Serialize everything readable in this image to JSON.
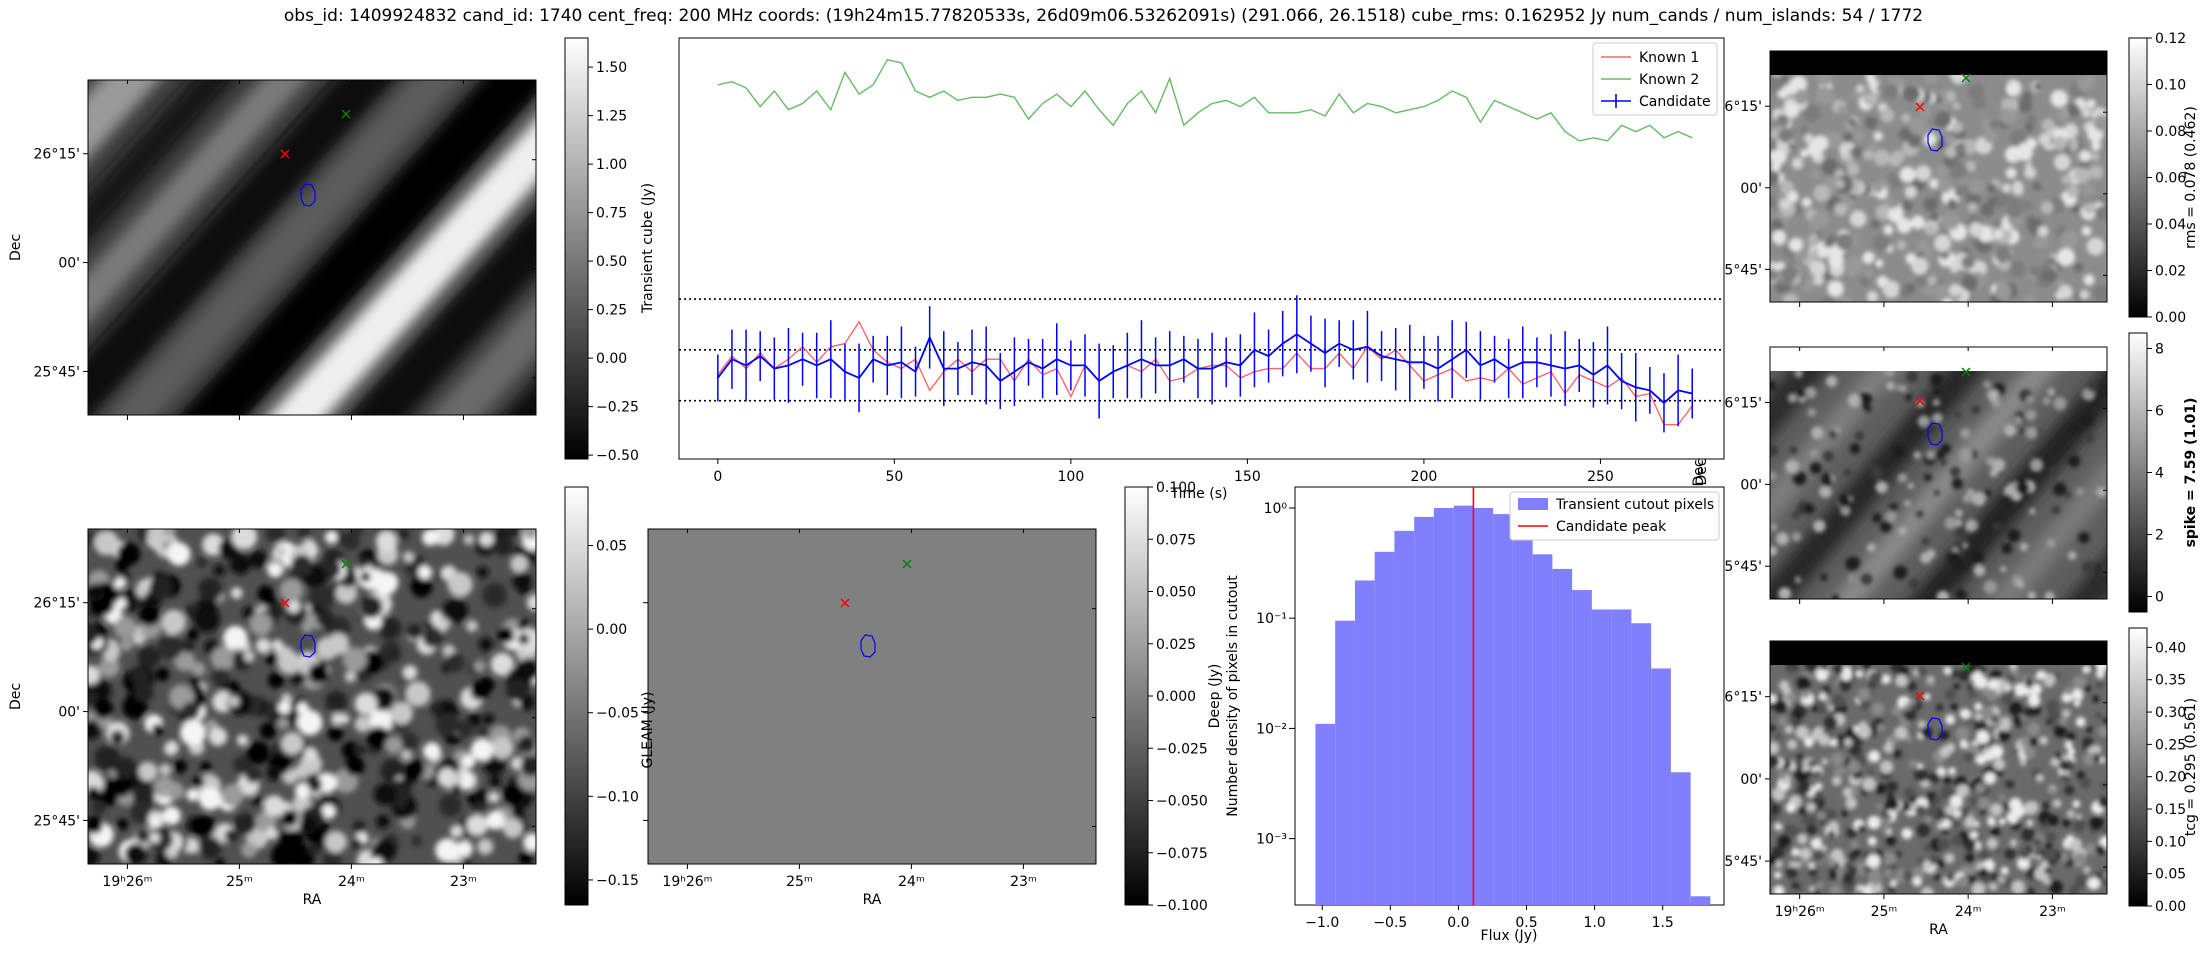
{
  "title": "obs_id: 1409924832 cand_id: 1740 cent_freq: 200 MHz coords: (19h24m15.77820533s, 26d09m06.53262091s) (291.066, 26.1518) cube_rms: 0.162952 Jy num_cands / num_islands: 54 / 1772",
  "colors": {
    "known1": "#ff6666",
    "known2": "#66bb66",
    "candidate": "#0000ff",
    "hist_fill": "#8080ff",
    "peak_line": "#ff0000",
    "red_marker": "#ff0000",
    "green_marker": "#008000"
  },
  "images": {
    "ra_ticks": [
      "19ʰ26ᵐ",
      "25ᵐ",
      "24ᵐ",
      "23ᵐ"
    ],
    "dec_ticks": [
      "26°15'",
      "00'",
      "25°45'"
    ],
    "ra_label": "RA",
    "dec_label": "Dec",
    "transient": {
      "name": "transient-image",
      "colorbar_label": "",
      "colorbar_ticks": [
        "1.50",
        "1.25",
        "1.00",
        "0.75",
        "0.50",
        "0.25",
        "0.00",
        "−0.25",
        "−0.50"
      ],
      "colorbar_range": [
        -0.52,
        1.65
      ]
    },
    "deep": {
      "name": "deep-image",
      "colorbar_label": "",
      "colorbar_ticks": [
        "0.05",
        "0.00",
        "−0.05",
        "−0.10",
        "−0.15"
      ],
      "colorbar_range": [
        -0.165,
        0.085
      ]
    },
    "gleam": {
      "name": "gleam-image",
      "ylabel": "GLEAM (Jy)",
      "colorbar_ticks": [
        "0.100",
        "0.075",
        "0.050",
        "0.025",
        "0.000",
        "−0.025",
        "−0.050",
        "−0.075",
        "−0.100"
      ],
      "colorbar_range": [
        -0.1,
        0.1
      ]
    },
    "rms": {
      "name": "rms-image",
      "colorbar_label": "rms = 0.078 (0.462)",
      "colorbar_ticks": [
        "0.12",
        "0.10",
        "0.08",
        "0.06",
        "0.04",
        "0.02",
        "0.00"
      ],
      "colorbar_range": [
        0,
        0.12
      ]
    },
    "spike": {
      "name": "spike-image",
      "colorbar_label": "spike = 7.59 (1.01)",
      "colorbar_ticks": [
        "8",
        "6",
        "4",
        "2",
        "0"
      ],
      "colorbar_range": [
        -0.5,
        8.5
      ]
    },
    "tcg": {
      "name": "tcg-image",
      "colorbar_label": "tcg = 0.295 (0.561)",
      "colorbar_ticks": [
        "0.40",
        "0.35",
        "0.30",
        "0.25",
        "0.20",
        "0.15",
        "0.10",
        "0.05",
        "0.00"
      ],
      "colorbar_range": [
        0,
        0.43
      ]
    }
  },
  "chart_data": [
    {
      "type": "line",
      "name": "lightcurve",
      "xlabel": "Time (s)",
      "ylabel": "Transient cube (Jy)",
      "xlim": [
        -11,
        285
      ],
      "ylim": [
        -0.35,
        1.0
      ],
      "xticks": [
        0,
        50,
        100,
        150,
        200,
        250
      ],
      "rms_lines": [
        0.163,
        0,
        -0.163
      ],
      "legend": [
        "Known 1",
        "Known 2",
        "Candidate"
      ],
      "legend_loc": "upper right",
      "x": [
        0,
        4,
        8,
        12,
        16,
        20,
        24,
        28,
        32,
        36,
        40,
        44,
        48,
        52,
        56,
        60,
        64,
        68,
        72,
        76,
        80,
        84,
        88,
        92,
        96,
        100,
        104,
        108,
        112,
        116,
        120,
        124,
        128,
        132,
        136,
        140,
        144,
        148,
        152,
        156,
        160,
        164,
        168,
        172,
        176,
        180,
        184,
        188,
        192,
        196,
        200,
        204,
        208,
        212,
        216,
        220,
        224,
        228,
        232,
        236,
        240,
        244,
        248,
        252,
        256,
        260,
        264,
        268,
        272,
        276
      ],
      "series": [
        {
          "name": "Known 2",
          "values": [
            0.85,
            0.86,
            0.84,
            0.78,
            0.83,
            0.77,
            0.79,
            0.83,
            0.77,
            0.89,
            0.82,
            0.85,
            0.93,
            0.92,
            0.83,
            0.81,
            0.83,
            0.8,
            0.81,
            0.81,
            0.82,
            0.81,
            0.74,
            0.79,
            0.82,
            0.78,
            0.83,
            0.77,
            0.72,
            0.79,
            0.83,
            0.76,
            0.87,
            0.72,
            0.76,
            0.79,
            0.8,
            0.78,
            0.81,
            0.76,
            0.76,
            0.76,
            0.77,
            0.75,
            0.82,
            0.76,
            0.79,
            0.78,
            0.76,
            0.77,
            0.78,
            0.8,
            0.83,
            0.81,
            0.73,
            0.8,
            0.78,
            0.76,
            0.74,
            0.76,
            0.7,
            0.67,
            0.68,
            0.67,
            0.72,
            0.7,
            0.72,
            0.68,
            0.7,
            0.68
          ]
        },
        {
          "name": "Known 1",
          "values": [
            -0.08,
            -0.02,
            -0.06,
            -0.01,
            -0.06,
            -0.03,
            0.01,
            -0.04,
            0.01,
            0.02,
            0.09,
            0.0,
            -0.04,
            -0.06,
            -0.03,
            -0.13,
            -0.07,
            -0.03,
            -0.07,
            -0.03,
            -0.03,
            -0.1,
            -0.03,
            -0.08,
            -0.06,
            -0.15,
            -0.05,
            -0.1,
            -0.07,
            -0.05,
            -0.07,
            -0.03,
            -0.1,
            -0.09,
            -0.06,
            -0.05,
            -0.05,
            -0.09,
            -0.07,
            -0.06,
            -0.06,
            -0.01,
            -0.06,
            -0.06,
            -0.01,
            -0.06,
            0.01,
            -0.03,
            0.0,
            -0.05,
            -0.1,
            -0.08,
            -0.06,
            -0.1,
            -0.09,
            -0.1,
            -0.06,
            -0.11,
            -0.09,
            -0.07,
            -0.14,
            -0.08,
            -0.1,
            -0.12,
            -0.09,
            -0.15,
            -0.14,
            -0.24,
            -0.24,
            -0.18
          ]
        },
        {
          "name": "Candidate",
          "values": [
            -0.09,
            -0.03,
            -0.05,
            -0.02,
            -0.06,
            -0.05,
            -0.03,
            -0.05,
            -0.03,
            -0.07,
            -0.09,
            -0.03,
            -0.05,
            -0.04,
            -0.07,
            0.04,
            -0.06,
            -0.06,
            -0.04,
            -0.05,
            -0.1,
            -0.07,
            -0.04,
            -0.06,
            -0.03,
            -0.05,
            -0.05,
            -0.1,
            -0.07,
            -0.05,
            -0.03,
            -0.05,
            -0.05,
            -0.03,
            -0.06,
            -0.06,
            -0.04,
            -0.05,
            0.0,
            -0.02,
            0.02,
            0.05,
            0.02,
            -0.01,
            0.02,
            0.0,
            0.01,
            -0.02,
            -0.03,
            -0.04,
            -0.04,
            -0.06,
            -0.03,
            0.0,
            -0.05,
            -0.03,
            -0.06,
            -0.04,
            -0.04,
            -0.05,
            -0.06,
            -0.05,
            -0.08,
            -0.05,
            -0.1,
            -0.12,
            -0.13,
            -0.17,
            -0.13,
            -0.14
          ],
          "error": 0.1
        }
      ]
    },
    {
      "type": "bar",
      "name": "histogram",
      "xlabel": "Flux (Jy)",
      "ylabel": "Number density of pixels in cutout",
      "secondary_ylabel": "Deep (Jy)",
      "yscale": "log",
      "xlim": [
        -1.2,
        1.95
      ],
      "ylim": [
        0.00025,
        1.55
      ],
      "xticks": [
        -1.0,
        -0.5,
        0.0,
        0.5,
        1.0,
        1.5
      ],
      "xtick_labels": [
        "−1.0",
        "−0.5",
        "0.0",
        "0.5",
        "1.0",
        "1.5"
      ],
      "ytick_labels": [
        "10⁰",
        "10⁻¹",
        "10⁻²",
        "10⁻³"
      ],
      "bin_edges": [
        -1.05,
        -0.905,
        -0.76,
        -0.615,
        -0.47,
        -0.325,
        -0.18,
        -0.035,
        0.11,
        0.255,
        0.4,
        0.545,
        0.69,
        0.835,
        0.98,
        1.125,
        1.27,
        1.415,
        1.56,
        1.705,
        1.85
      ],
      "values": [
        0.011,
        0.095,
        0.22,
        0.4,
        0.62,
        0.83,
        1.0,
        1.05,
        1.0,
        0.88,
        0.6,
        0.38,
        0.28,
        0.18,
        0.12,
        0.12,
        0.09,
        0.035,
        0.004,
        0.0003
      ],
      "peak": 0.11,
      "legend": [
        "Transient cutout pixels",
        "Candidate peak"
      ],
      "legend_loc": "upper right"
    }
  ]
}
